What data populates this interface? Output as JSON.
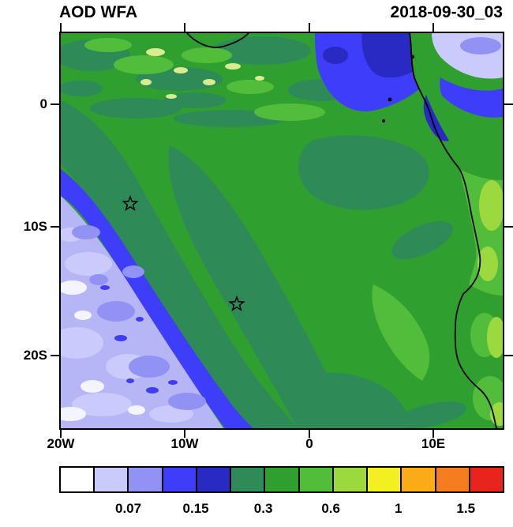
{
  "header": {
    "title": "AOD WFA",
    "date": "2018-09-30_03"
  },
  "axes": {
    "y_tick_labels": [
      "0",
      "10S",
      "20S"
    ],
    "x_tick_labels": [
      "20W",
      "10W",
      "0",
      "10E"
    ]
  },
  "colorbar": {
    "colors": [
      "#ffffff",
      "#cacafc",
      "#9292f4",
      "#3d3dfa",
      "#2929c4",
      "#2e8b57",
      "#2fa02f",
      "#52bd3a",
      "#9cd93f",
      "#f2ef22",
      "#fbab18",
      "#f57d1f",
      "#e8241c"
    ],
    "tick_labels": [
      "0.07",
      "0.15",
      "0.3",
      "0.6",
      "1",
      "1.5"
    ]
  },
  "map_colors": {
    "green": "#2fa02f",
    "teal": "#2e8b57",
    "blue": "#3d3dfa",
    "navy": "#2929c4",
    "periwinkle": "#9292f4",
    "lavender": "#cacafc",
    "lavender_mid": "#b6b6f6",
    "white_patch": "#f4f4ff",
    "light_green": "#52bd3a",
    "pale_green": "#9cd93f",
    "pale_speck": "#d9ec8f",
    "coast": "#000000"
  },
  "chart_data": {
    "type": "heatmap",
    "title": "AOD WFA",
    "timestamp": "2018-09-30_03",
    "x_axis": {
      "kind": "longitude",
      "ticks": [
        "20W",
        "10W",
        "0",
        "10E"
      ]
    },
    "y_axis": {
      "kind": "latitude",
      "ticks": [
        "0",
        "10S",
        "20S"
      ]
    },
    "colorbar_tick_labels": [
      "0.07",
      "0.15",
      "0.3",
      "0.6",
      "1",
      "1.5"
    ],
    "palette": [
      "#ffffff",
      "#cacafc",
      "#9292f4",
      "#3d3dfa",
      "#2929c4",
      "#2e8b57",
      "#2fa02f",
      "#52bd3a",
      "#9cd93f",
      "#f2ef22",
      "#fbab18",
      "#f57d1f",
      "#e8241c"
    ],
    "markers": [
      {
        "symbol": "star",
        "approx_lon": "14W",
        "approx_lat": "8S"
      },
      {
        "symbol": "star",
        "approx_lon": "6W",
        "approx_lat": "16S"
      }
    ],
    "field_summary": [
      {
        "region": "southwest ocean corner",
        "approx_aod": "below 0.07 to 0.15, mottled"
      },
      {
        "region": "diagonal band from northwest edge to south-center",
        "approx_aod": "0.15 to 0.3"
      },
      {
        "region": "central and eastern ocean plus most land",
        "approx_aod": "0.3 to 0.6"
      },
      {
        "region": "northeast ocean near Gulf of Guinea coast",
        "approx_aod": "0.07 to 0.3 (blue patches)"
      },
      {
        "region": "top-right corner over land",
        "approx_aod": "below 0.07 (pale patch)"
      }
    ]
  }
}
